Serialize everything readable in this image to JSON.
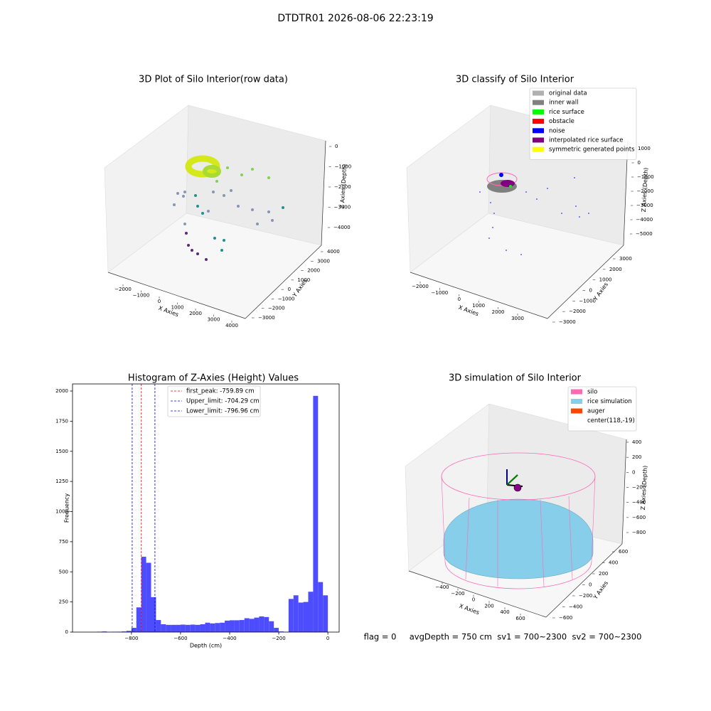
{
  "title": "DTDTR01 2026-08-06 22:23:19",
  "footer": "flag = 0     avgDepth = 750 cm  sv1 = 700~2300  sv2 = 700~2300",
  "chart_data": [
    {
      "type": "scatter3d",
      "title": "3D Plot of Silo Interior(row data)",
      "xlabel": "X Axies",
      "ylabel": "Y Axies",
      "zlabel": "Z Axies (Depth)",
      "xticks": [
        {
          "value": -2000,
          "label": "−2000"
        },
        {
          "value": -1000,
          "label": "−1000"
        },
        0,
        1000,
        2000,
        3000,
        4000
      ],
      "yticks": [
        {
          "value": -3000,
          "label": "−3000"
        },
        {
          "value": -2000,
          "label": "−2000"
        },
        {
          "value": -1000,
          "label": "−1000"
        },
        0,
        1000,
        2000,
        3000,
        4000
      ],
      "zticks": [
        0,
        {
          "value": -1000,
          "label": "−1000"
        },
        {
          "value": -2000,
          "label": "−2000"
        },
        {
          "value": -3000,
          "label": "−3000"
        },
        {
          "value": -4000,
          "label": "−4000"
        }
      ]
    },
    {
      "type": "scatter3d",
      "title": "3D classify of Silo Interior",
      "xlabel": "X Axies",
      "ylabel": "Y Axies",
      "zlabel": "Z Axies (Depth)",
      "xticks": [
        {
          "value": -2000,
          "label": "−2000"
        },
        {
          "value": -1000,
          "label": "−1000"
        },
        0,
        1000,
        2000,
        3000
      ],
      "yticks": [
        {
          "value": -3000,
          "label": "−3000"
        },
        {
          "value": -2000,
          "label": "−2000"
        },
        {
          "value": -1000,
          "label": "−1000"
        },
        0,
        1000,
        2000,
        3000
      ],
      "zticks": [
        1000,
        0,
        {
          "value": -1000,
          "label": "−1000"
        },
        {
          "value": -2000,
          "label": "−2000"
        },
        {
          "value": -3000,
          "label": "−3000"
        },
        {
          "value": -4000,
          "label": "−4000"
        },
        {
          "value": -5000,
          "label": "−5000"
        }
      ],
      "legend": [
        {
          "name": "original data",
          "color": "#b0b0b0"
        },
        {
          "name": "inner wall",
          "color": "#808080"
        },
        {
          "name": "rice surface",
          "color": "#00ff00"
        },
        {
          "name": "obstacle",
          "color": "#ff0000"
        },
        {
          "name": "noise",
          "color": "#0000ff"
        },
        {
          "name": "interpolated rice surface",
          "color": "#800080"
        },
        {
          "name": "symmetric generated points",
          "color": "#ffff00"
        }
      ]
    },
    {
      "type": "histogram",
      "title": "Histogram of Z-Axies (Height) Values",
      "xlabel": "Depth (cm)",
      "ylabel": "Frequency",
      "color": "#4d4dff",
      "bins": [
        -980,
        -960,
        -940,
        -920,
        -900,
        -880,
        -860,
        -840,
        -820,
        -800,
        -780,
        -760,
        -740,
        -720,
        -700,
        -680,
        -660,
        -640,
        -620,
        -600,
        -580,
        -560,
        -540,
        -520,
        -500,
        -480,
        -460,
        -440,
        -420,
        -400,
        -380,
        -360,
        -340,
        -320,
        -300,
        -280,
        -260,
        -240,
        -220,
        -200,
        -180,
        -160,
        -140,
        -120,
        -100,
        -80,
        -60,
        -40,
        -20,
        0
      ],
      "counts": [
        0,
        0,
        3,
        5,
        0,
        2,
        3,
        5,
        10,
        35,
        205,
        625,
        575,
        290,
        100,
        65,
        60,
        60,
        60,
        62,
        60,
        62,
        60,
        65,
        78,
        72,
        75,
        78,
        95,
        98,
        98,
        100,
        115,
        110,
        120,
        130,
        125,
        90,
        35,
        5,
        2,
        275,
        305,
        245,
        250,
        335,
        1960,
        415,
        305
      ],
      "xlim": [
        -1040,
        46
      ],
      "ylim": [
        0,
        2059
      ],
      "xticks": [
        {
          "value": -800,
          "label": "−800"
        },
        {
          "value": -600,
          "label": "−600"
        },
        {
          "value": -400,
          "label": "−400"
        },
        {
          "value": -200,
          "label": "−200"
        },
        0
      ],
      "yticks": [
        0,
        250,
        500,
        750,
        1000,
        1250,
        1500,
        1750,
        2000
      ],
      "vlines": [
        {
          "name": "first_peak: -759.89 cm",
          "value": -759.89,
          "color": "#ff0000"
        },
        {
          "name": "Upper_limit: -704.29 cm",
          "value": -704.29,
          "color": "#0000ff"
        },
        {
          "name": "Lower_limit: -796.96 cm",
          "value": -796.96,
          "color": "#0000ff"
        }
      ]
    },
    {
      "type": "surface3d",
      "title": "3D simulation of Silo Interior",
      "xlabel": "X Axies",
      "ylabel": "Y Axies",
      "zlabel": "Z Axies (Depth)",
      "xticks": [
        {
          "value": -400,
          "label": "−400"
        },
        {
          "value": -200,
          "label": "−200"
        },
        0,
        200,
        400,
        600
      ],
      "yticks": [
        {
          "value": -600,
          "label": "−600"
        },
        {
          "value": -400,
          "label": "−400"
        },
        {
          "value": -200,
          "label": "−200"
        },
        0,
        200,
        400,
        600
      ],
      "zticks": [
        400,
        200,
        0,
        {
          "value": -200,
          "label": "−200"
        },
        {
          "value": -400,
          "label": "−400"
        },
        {
          "value": -600,
          "label": "−600"
        },
        {
          "value": -800,
          "label": "−800"
        }
      ],
      "legend": [
        {
          "name": "silo",
          "color": "#ff69b4"
        },
        {
          "name": "rice simulation",
          "color": "#87ceeb"
        },
        {
          "name": "auger",
          "color": "#ff4500"
        },
        {
          "name": "center(118,-19)",
          "color": "#ffffff"
        }
      ]
    }
  ]
}
